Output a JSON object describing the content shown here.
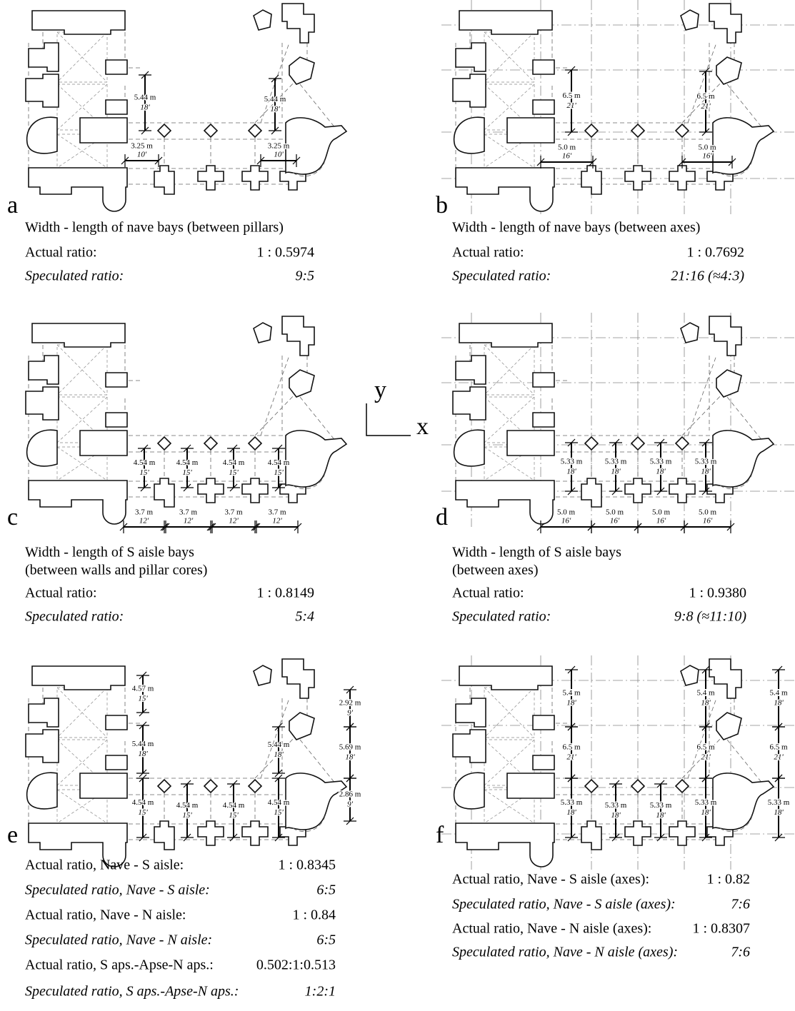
{
  "panels": [
    {
      "letter": "a",
      "dimensions": [
        {
          "metric": "5.44 m",
          "feet": "18'"
        },
        {
          "metric": "5.44 m",
          "feet": "18'"
        },
        {
          "metric": "3.25 m",
          "feet": "10'"
        },
        {
          "metric": "3.25 m",
          "feet": "10'"
        }
      ],
      "caption": [
        "Width - length of nave bays (between pillars)"
      ],
      "rows": [
        {
          "label": "Actual ratio:",
          "value": "1 : 0.5974"
        },
        {
          "label": "Speculated ratio:",
          "value": "9:5"
        }
      ]
    },
    {
      "letter": "b",
      "dimensions": [
        {
          "metric": "6.5 m",
          "feet": "21'"
        },
        {
          "metric": "6.5 m",
          "feet": "21'"
        },
        {
          "metric": "5.0 m",
          "feet": "16'"
        },
        {
          "metric": "5.0 m",
          "feet": "16'"
        }
      ],
      "caption": [
        "Width - length of nave bays (between axes)"
      ],
      "rows": [
        {
          "label": "Actual ratio:",
          "value": "1 : 0.7692"
        },
        {
          "label": "Speculated ratio:",
          "value": "21:16 (≈4:3)"
        }
      ]
    },
    {
      "letter": "c",
      "dimensions": [
        {
          "metric": "4.54 m",
          "feet": "15'"
        },
        {
          "metric": "4.54 m",
          "feet": "15'"
        },
        {
          "metric": "4.54 m",
          "feet": "15'"
        },
        {
          "metric": "4.54 m",
          "feet": "15'"
        },
        {
          "metric": "3.7 m",
          "feet": "12'"
        },
        {
          "metric": "3.7 m",
          "feet": "12'"
        },
        {
          "metric": "3.7 m",
          "feet": "12'"
        },
        {
          "metric": "3.7 m",
          "feet": "12'"
        }
      ],
      "caption": [
        "Width - length of S aisle bays",
        "(between walls and pillar cores)"
      ],
      "rows": [
        {
          "label": "Actual ratio:",
          "value": "1 : 0.8149"
        },
        {
          "label": "Speculated ratio:",
          "value": "5:4"
        }
      ]
    },
    {
      "letter": "d",
      "dimensions": [
        {
          "metric": "5.33 m",
          "feet": "18'"
        },
        {
          "metric": "5.33 m",
          "feet": "18'"
        },
        {
          "metric": "5.33 m",
          "feet": "18'"
        },
        {
          "metric": "5.33 m",
          "feet": "18'"
        },
        {
          "metric": "5.0 m",
          "feet": "16'"
        },
        {
          "metric": "5.0 m",
          "feet": "16'"
        },
        {
          "metric": "5.0 m",
          "feet": "16'"
        },
        {
          "metric": "5.0 m",
          "feet": "16'"
        }
      ],
      "caption": [
        "Width - length of S aisle bays",
        "(between axes)"
      ],
      "rows": [
        {
          "label": "Actual ratio:",
          "value": "1 : 0.9380"
        },
        {
          "label": "Speculated ratio:",
          "value": "9:8 (≈11:10)"
        }
      ]
    },
    {
      "letter": "e",
      "dimensions": [
        {
          "metric": "4.57 m",
          "feet": "15'"
        },
        {
          "metric": "5.44 m",
          "feet": "18'"
        },
        {
          "metric": "4.54 m",
          "feet": "15'"
        },
        {
          "metric": "4.54 m",
          "feet": "15'"
        },
        {
          "metric": "4.54 m",
          "feet": "15'"
        },
        {
          "metric": "5.44 m",
          "feet": "18'"
        },
        {
          "metric": "4.54 m",
          "feet": "15'"
        },
        {
          "metric": "2.92 m",
          "feet": "9'"
        },
        {
          "metric": "5.69 m",
          "feet": "18'"
        },
        {
          "metric": "2.86 m",
          "feet": "9'"
        }
      ],
      "rows": [
        {
          "label": "Actual ratio, Nave - S aisle:",
          "value": "1 : 0.8345"
        },
        {
          "label": "Speculated ratio, Nave - S aisle:",
          "value": "6:5"
        },
        {
          "label": "Actual ratio, Nave - N aisle:",
          "value": "1 : 0.84"
        },
        {
          "label": "Speculated ratio, Nave - N aisle:",
          "value": "6:5"
        },
        {
          "label": "Actual ratio, S aps.-Apse-N aps.:",
          "value": "0.502:1:0.513"
        },
        {
          "label": "Speculated ratio, S aps.-Apse-N aps.:",
          "value": "1:2:1"
        }
      ]
    },
    {
      "letter": "f",
      "dimensions": [
        {
          "metric": "5.4 m",
          "feet": "18'"
        },
        {
          "metric": "6.5 m",
          "feet": "21'"
        },
        {
          "metric": "5.33 m",
          "feet": "18'"
        },
        {
          "metric": "5.33 m",
          "feet": "18'"
        },
        {
          "metric": "5.33 m",
          "feet": "18'"
        },
        {
          "metric": "5.4 m",
          "feet": "18'"
        },
        {
          "metric": "6.5 m",
          "feet": "21'"
        },
        {
          "metric": "5.33 m",
          "feet": "18'"
        },
        {
          "metric": "5.4 m",
          "feet": "18'"
        },
        {
          "metric": "6.5 m",
          "feet": "21'"
        },
        {
          "metric": "5.33 m",
          "feet": "18'"
        }
      ],
      "rows": [
        {
          "label": "Actual ratio, Nave - S aisle (axes):",
          "value": "1 : 0.82"
        },
        {
          "label": "Speculated ratio, Nave - S aisle (axes):",
          "value": "7:6"
        },
        {
          "label": "Actual ratio, Nave - N aisle (axes):",
          "value": "1 : 0.8307"
        },
        {
          "label": "Speculated ratio, Nave - N aisle (axes):",
          "value": "7:6"
        }
      ]
    }
  ],
  "axis_indicator": {
    "y": "y",
    "x": "x"
  }
}
